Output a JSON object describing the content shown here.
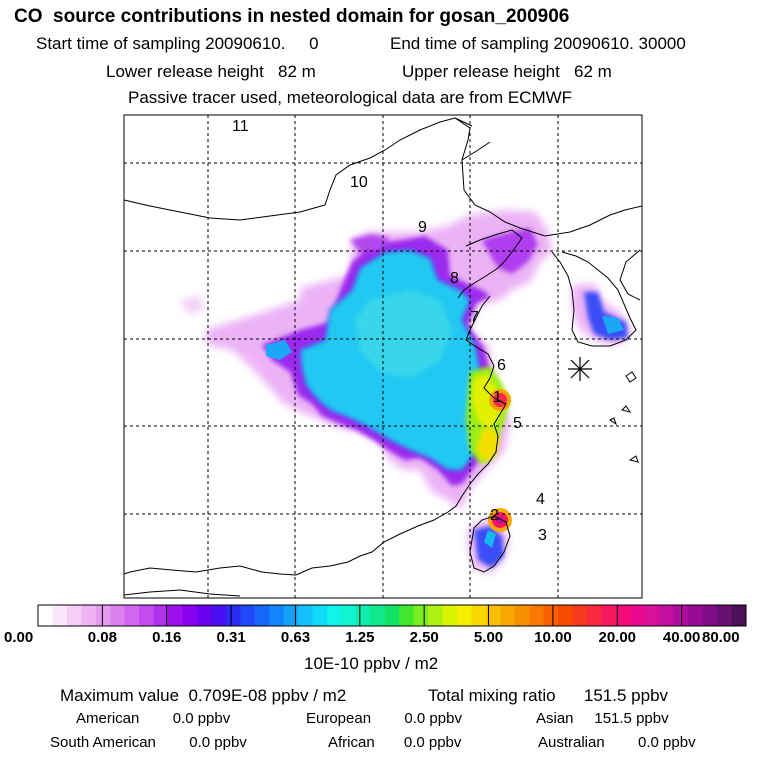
{
  "header": {
    "title": "CO  source contributions in nested domain for gosan_200906",
    "start_label": "Start time of sampling 20090610.     0",
    "end_label": "End time of sampling 20090610. 30000",
    "lower_label": "Lower release height   82 m",
    "upper_label": "Upper release height   62 m",
    "tracer_note": "Passive tracer used, meteorological data are from ECMWF"
  },
  "map": {
    "site_labels": [
      "1",
      "2",
      "3",
      "4",
      "5",
      "6",
      "7",
      "8",
      "9",
      "10",
      "11"
    ],
    "receptor_marker": "asterisk-icon"
  },
  "colorbar": {
    "ticks": [
      "0.00",
      "0.08",
      "0.16",
      "0.31",
      "0.63",
      "1.25",
      "2.50",
      "5.00",
      "10.00",
      "20.00",
      "40.00",
      "80.00"
    ],
    "unit_label": "10E-10 ppbv / m2",
    "colors": [
      "#ffffff",
      "#fbe7fb",
      "#f5cdf5",
      "#efb3f2",
      "#e59af0",
      "#db82ee",
      "#d067ee",
      "#c24cee",
      "#b030ee",
      "#9c10ee",
      "#8a00f0",
      "#6a00f2",
      "#4a10f4",
      "#2e2af6",
      "#1e48f8",
      "#1666fa",
      "#1484fa",
      "#14a2fa",
      "#14c0fa",
      "#10dcf8",
      "#10f4ee",
      "#10f4d0",
      "#10eeae",
      "#10e88c",
      "#12e264",
      "#40e830",
      "#7aee20",
      "#aef010",
      "#d8f400",
      "#f4f000",
      "#f8d800",
      "#f8c000",
      "#f8a800",
      "#f89000",
      "#f87800",
      "#f86000",
      "#f84a00",
      "#f83820",
      "#f82840",
      "#f81860",
      "#f40a78",
      "#ea0890",
      "#d8109a",
      "#c4109e",
      "#b00c9c",
      "#980c94",
      "#7e0c84",
      "#661070",
      "#4c1058"
    ]
  },
  "summary": {
    "max_value": "Maximum value  0.709E-08 ppbv / m2",
    "total_mixing": "Total mixing ratio      151.5 ppbv",
    "american": "American        0.0 ppbv",
    "european": "European        0.0 ppbv",
    "asian": "Asian     151.5 ppbv",
    "south_american": "South American        0.0 ppbv",
    "african": "African       0.0 ppbv",
    "australian": "Australian        0.0 ppbv"
  }
}
